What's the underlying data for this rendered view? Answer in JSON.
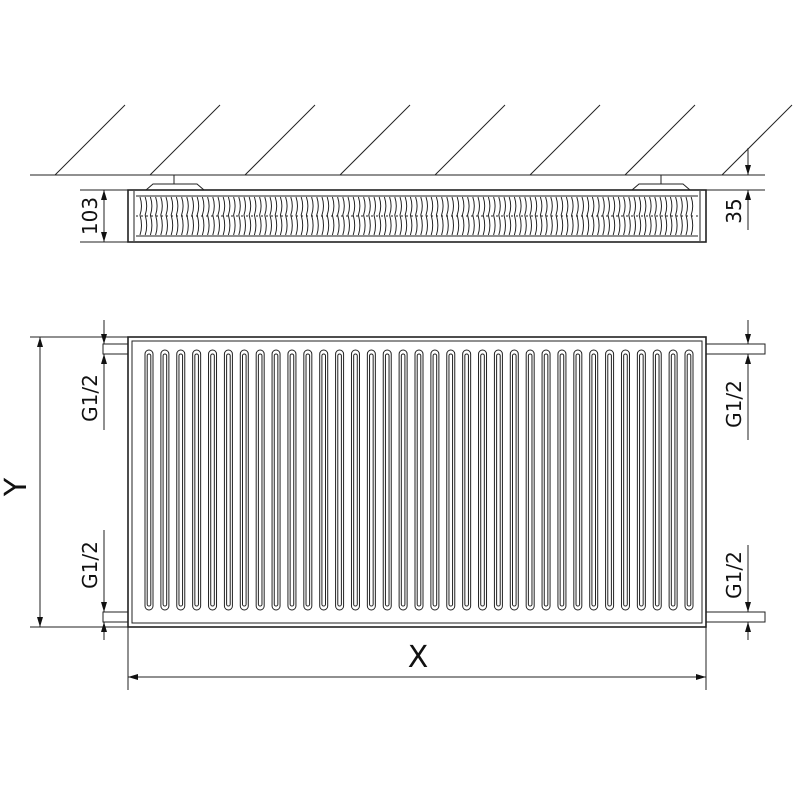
{
  "top_view": {
    "height_dim": "103",
    "wall_offset_dim": "35"
  },
  "front_view": {
    "height_label": "Y",
    "width_label": "X",
    "connections": {
      "left_top": "G1/2",
      "left_bottom": "G1/2",
      "right_top": "G1/2",
      "right_bottom": "G1/2"
    }
  },
  "colors": {
    "line": "#222222",
    "background": "#ffffff"
  }
}
